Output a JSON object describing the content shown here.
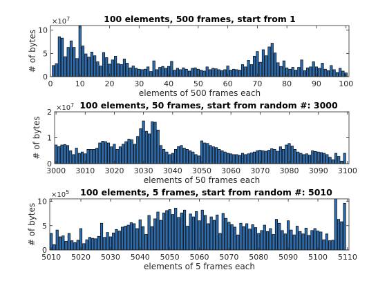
{
  "chart_data": [
    {
      "type": "bar",
      "title": "100 elements, 500 frames, start from 1",
      "xlabel": "elements of 500 frames each",
      "ylabel": "# of bytes",
      "exponent_base": "×10",
      "exponent_power": "7",
      "xlim": [
        0,
        101
      ],
      "ylim": [
        0,
        11
      ],
      "xticks": [
        0,
        10,
        20,
        30,
        40,
        50,
        60,
        70,
        80,
        90,
        100
      ],
      "yticks": [
        0,
        5,
        10
      ],
      "x_start": 1,
      "values": [
        2.4,
        2.8,
        8.6,
        8.3,
        4.3,
        6.3,
        7.7,
        6.3,
        3.9,
        11.5,
        6.6,
        4.9,
        4.2,
        5.3,
        4.5,
        3.2,
        2.3,
        5.2,
        4.1,
        2.7,
        3.6,
        4.4,
        2.8,
        2.6,
        3.8,
        2.9,
        1.9,
        2.3,
        1.8,
        1.6,
        1.5,
        1.6,
        2.1,
        1.1,
        3.4,
        1.5,
        2.0,
        2.2,
        1.8,
        2.2,
        3.3,
        1.4,
        1.8,
        1.5,
        1.9,
        1.6,
        1.2,
        1.8,
        1.9,
        1.6,
        1.4,
        1.2,
        2.1,
        1.5,
        1.8,
        1.7,
        1.5,
        1.3,
        1.5,
        2.3,
        1.4,
        1.6,
        1.5,
        1.4,
        2.6,
        2.1,
        3.5,
        2.6,
        4.4,
        5.4,
        3.1,
        5.8,
        4.5,
        6.4,
        7.2,
        5.1,
        3.0,
        2.2,
        3.4,
        1.9,
        1.6,
        2.0,
        1.4,
        2.0,
        3.6,
        1.3,
        1.9,
        2.1,
        3.2,
        2.1,
        1.8,
        2.9,
        1.6,
        1.3,
        2.4,
        1.5,
        0.9,
        1.8,
        1.2,
        0.8
      ]
    },
    {
      "type": "bar",
      "title": "100 elements, 50 frames, start from random #: 3000",
      "xlabel": "elements of 50 frames each",
      "ylabel": "# of bytes",
      "exponent_base": "×10",
      "exponent_power": "7",
      "xlim": [
        2999.5,
        3100.5
      ],
      "ylim": [
        0,
        2
      ],
      "xticks": [
        3000,
        3010,
        3020,
        3030,
        3040,
        3050,
        3060,
        3070,
        3080,
        3090,
        3100
      ],
      "yticks": [
        0,
        1,
        2
      ],
      "x_start": 3000,
      "values": [
        0.72,
        0.66,
        0.72,
        0.74,
        0.7,
        0.5,
        0.35,
        0.6,
        0.4,
        0.45,
        0.38,
        0.55,
        0.55,
        0.55,
        0.6,
        0.8,
        0.87,
        0.85,
        0.8,
        0.65,
        0.75,
        0.55,
        0.65,
        0.75,
        0.85,
        0.95,
        0.92,
        0.75,
        1.05,
        1.35,
        1.65,
        1.25,
        1.15,
        1.62,
        1.6,
        1.3,
        0.7,
        0.55,
        0.45,
        0.35,
        0.4,
        0.55,
        0.66,
        0.7,
        0.6,
        0.55,
        0.5,
        0.45,
        0.35,
        0.3,
        0.88,
        0.8,
        0.78,
        0.7,
        0.65,
        0.62,
        0.55,
        0.5,
        0.45,
        0.4,
        0.38,
        0.35,
        0.35,
        0.32,
        0.4,
        0.35,
        0.38,
        0.42,
        0.45,
        0.5,
        0.52,
        0.5,
        0.48,
        0.52,
        0.58,
        0.55,
        0.48,
        0.65,
        0.55,
        0.72,
        0.78,
        0.68,
        0.55,
        0.45,
        0.4,
        0.35,
        0.38,
        0.33,
        0.5,
        0.47,
        0.45,
        0.43,
        0.4,
        0.35,
        0.25,
        0.15,
        0.4,
        0.28,
        0.1,
        0.4
      ]
    },
    {
      "type": "bar",
      "title": "100 elements, 5 frames, start from random #: 5010",
      "xlabel": "elements of 5 frames each",
      "ylabel": "# of bytes",
      "exponent_base": "×10",
      "exponent_power": "5",
      "xlim": [
        5009.5,
        5110.5
      ],
      "ylim": [
        0,
        10.5
      ],
      "xticks": [
        5010,
        5020,
        5030,
        5040,
        5050,
        5060,
        5070,
        5080,
        5090,
        5100,
        5110
      ],
      "yticks": [
        0,
        5,
        10
      ],
      "x_start": 5010,
      "values": [
        3.4,
        1.1,
        4.1,
        2.7,
        2.9,
        1.8,
        3.4,
        1.9,
        1.5,
        2.0,
        4.4,
        1.3,
        2.1,
        2.6,
        2.4,
        2.3,
        2.8,
        5.5,
        2.6,
        3.6,
        2.7,
        3.5,
        4.2,
        3.9,
        4.7,
        4.9,
        5.1,
        5.6,
        5.4,
        4.4,
        6.2,
        4.8,
        3.2,
        7.1,
        4.8,
        6.4,
        7.8,
        6.1,
        7.6,
        8.1,
        8.3,
        7.3,
        8.6,
        6.7,
        7.6,
        8.2,
        4.9,
        7.4,
        6.8,
        7.9,
        6.0,
        8.2,
        7.1,
        5.4,
        6.8,
        6.1,
        7.2,
        3.4,
        7.5,
        6.5,
        5.7,
        5.2,
        4.7,
        3.1,
        5.5,
        4.8,
        5.4,
        4.3,
        5.2,
        4.6,
        3.4,
        4.0,
        5.1,
        3.8,
        4.4,
        3.2,
        6.3,
        5.5,
        4.0,
        3.3,
        6.0,
        4.1,
        3.1,
        4.9,
        3.8,
        3.3,
        4.5,
        3.0,
        4.0,
        4.4,
        3.9,
        3.7,
        2.1,
        3.3,
        1.9,
        2.0,
        10.8,
        6.3,
        5.8,
        9.6
      ]
    }
  ]
}
